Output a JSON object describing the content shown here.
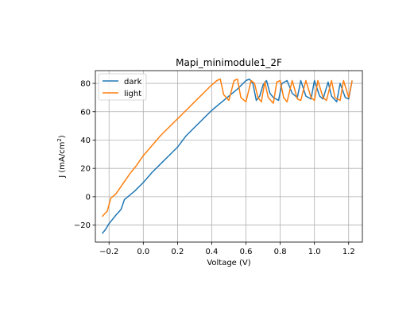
{
  "chart_data": {
    "type": "line",
    "title": "Mapi_minimodule1_2F",
    "xlabel": "Voltage (V)",
    "ylabel": "J (mA/cm",
    "ylabel_sup": "2",
    "ylabel_suffix": ")",
    "xlim": [
      -0.28,
      1.28
    ],
    "ylim": [
      -32,
      89
    ],
    "xticks": [
      -0.2,
      0.0,
      0.2,
      0.4,
      0.6,
      0.8,
      1.0,
      1.2
    ],
    "xtick_labels": [
      "−0.2",
      "0.0",
      "0.2",
      "0.4",
      "0.6",
      "0.8",
      "1.0",
      "1.2"
    ],
    "yticks": [
      -20,
      0,
      20,
      40,
      60,
      80
    ],
    "ytick_labels": [
      "−20",
      "0",
      "20",
      "40",
      "60",
      "80"
    ],
    "grid": true,
    "legend_position": "upper-left",
    "series": [
      {
        "name": "dark",
        "color": "#1f77b4",
        "points": [
          [
            -0.24,
            -26
          ],
          [
            -0.22,
            -23
          ],
          [
            -0.2,
            -19
          ],
          [
            -0.16,
            -13
          ],
          [
            -0.13,
            -9
          ],
          [
            -0.11,
            -2
          ],
          [
            -0.08,
            1
          ],
          [
            -0.05,
            4
          ],
          [
            0.0,
            10
          ],
          [
            0.05,
            17
          ],
          [
            0.1,
            23
          ],
          [
            0.15,
            29
          ],
          [
            0.2,
            35
          ],
          [
            0.25,
            43
          ],
          [
            0.3,
            49
          ],
          [
            0.35,
            55
          ],
          [
            0.4,
            61
          ],
          [
            0.45,
            66
          ],
          [
            0.5,
            71
          ],
          [
            0.55,
            76
          ],
          [
            0.6,
            82
          ],
          [
            0.62,
            83
          ],
          [
            0.64,
            80
          ],
          [
            0.66,
            68
          ],
          [
            0.68,
            71
          ],
          [
            0.7,
            79
          ],
          [
            0.72,
            82
          ],
          [
            0.74,
            73
          ],
          [
            0.76,
            70
          ],
          [
            0.79,
            68
          ],
          [
            0.81,
            80
          ],
          [
            0.84,
            82
          ],
          [
            0.87,
            73
          ],
          [
            0.9,
            70
          ],
          [
            0.92,
            82
          ],
          [
            0.95,
            71
          ],
          [
            0.98,
            69
          ],
          [
            1.0,
            82
          ],
          [
            1.03,
            71
          ],
          [
            1.05,
            69
          ],
          [
            1.08,
            81
          ],
          [
            1.1,
            71
          ],
          [
            1.13,
            67
          ],
          [
            1.15,
            80
          ],
          [
            1.18,
            70
          ],
          [
            1.2,
            69
          ],
          [
            1.22,
            82
          ]
        ]
      },
      {
        "name": "light",
        "color": "#ff7f0e",
        "points": [
          [
            -0.24,
            -14
          ],
          [
            -0.21,
            -10
          ],
          [
            -0.19,
            -1
          ],
          [
            -0.16,
            2
          ],
          [
            -0.12,
            9
          ],
          [
            -0.08,
            16
          ],
          [
            -0.04,
            22
          ],
          [
            0.0,
            29
          ],
          [
            0.05,
            36
          ],
          [
            0.1,
            43
          ],
          [
            0.15,
            49
          ],
          [
            0.2,
            55
          ],
          [
            0.25,
            61
          ],
          [
            0.3,
            67
          ],
          [
            0.35,
            73
          ],
          [
            0.4,
            79
          ],
          [
            0.43,
            82
          ],
          [
            0.45,
            83
          ],
          [
            0.47,
            72
          ],
          [
            0.5,
            68
          ],
          [
            0.53,
            82
          ],
          [
            0.55,
            83
          ],
          [
            0.57,
            70
          ],
          [
            0.6,
            67
          ],
          [
            0.63,
            82
          ],
          [
            0.65,
            80
          ],
          [
            0.67,
            70
          ],
          [
            0.69,
            67
          ],
          [
            0.71,
            81
          ],
          [
            0.73,
            70
          ],
          [
            0.76,
            66
          ],
          [
            0.78,
            81
          ],
          [
            0.8,
            82
          ],
          [
            0.82,
            70
          ],
          [
            0.84,
            67
          ],
          [
            0.87,
            82
          ],
          [
            0.9,
            69
          ],
          [
            0.92,
            68
          ],
          [
            0.95,
            82
          ],
          [
            0.98,
            70
          ],
          [
            1.0,
            68
          ],
          [
            1.02,
            82
          ],
          [
            1.05,
            70
          ],
          [
            1.07,
            68
          ],
          [
            1.1,
            82
          ],
          [
            1.12,
            70
          ],
          [
            1.15,
            68
          ],
          [
            1.17,
            82
          ],
          [
            1.2,
            70
          ],
          [
            1.22,
            82
          ]
        ]
      }
    ]
  }
}
